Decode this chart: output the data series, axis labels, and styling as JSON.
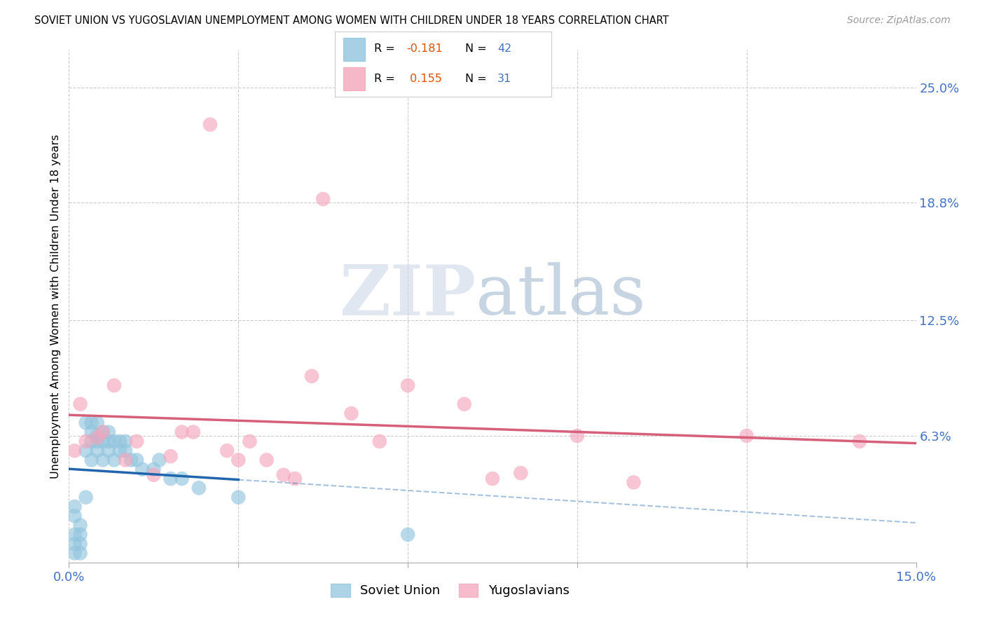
{
  "title": "SOVIET UNION VS YUGOSLAVIAN UNEMPLOYMENT AMONG WOMEN WITH CHILDREN UNDER 18 YEARS CORRELATION CHART",
  "source": "Source: ZipAtlas.com",
  "ylabel": "Unemployment Among Women with Children Under 18 years",
  "xlim": [
    0.0,
    0.15
  ],
  "ylim": [
    -0.005,
    0.27
  ],
  "xticks": [
    0.0,
    0.03,
    0.06,
    0.09,
    0.12,
    0.15
  ],
  "ytick_right_values": [
    0.063,
    0.125,
    0.188,
    0.25
  ],
  "ytick_right_labels": [
    "6.3%",
    "12.5%",
    "18.8%",
    "25.0%"
  ],
  "soviet_color": "#92c5de",
  "yugoslav_color": "#f4a6bc",
  "soviet_line_color": "#2166ac",
  "yugoslav_line_color": "#d6607a",
  "right_label_color": "#4472c4",
  "background_color": "#ffffff",
  "grid_color": "#cccccc",
  "soviet_x": [
    0.001,
    0.001,
    0.001,
    0.001,
    0.001,
    0.002,
    0.002,
    0.002,
    0.002,
    0.003,
    0.003,
    0.003,
    0.004,
    0.004,
    0.004,
    0.004,
    0.005,
    0.005,
    0.005,
    0.005,
    0.006,
    0.006,
    0.006,
    0.007,
    0.007,
    0.007,
    0.008,
    0.008,
    0.009,
    0.009,
    0.01,
    0.01,
    0.011,
    0.012,
    0.013,
    0.015,
    0.016,
    0.018,
    0.02,
    0.023,
    0.03,
    0.06
  ],
  "soviet_y": [
    0.0,
    0.005,
    0.01,
    0.02,
    0.025,
    0.0,
    0.005,
    0.01,
    0.015,
    0.03,
    0.055,
    0.07,
    0.05,
    0.06,
    0.065,
    0.07,
    0.055,
    0.06,
    0.063,
    0.07,
    0.05,
    0.06,
    0.065,
    0.055,
    0.06,
    0.065,
    0.05,
    0.06,
    0.055,
    0.06,
    0.055,
    0.06,
    0.05,
    0.05,
    0.045,
    0.045,
    0.05,
    0.04,
    0.04,
    0.035,
    0.03,
    0.01
  ],
  "yugoslav_x": [
    0.001,
    0.002,
    0.003,
    0.005,
    0.006,
    0.008,
    0.01,
    0.012,
    0.015,
    0.018,
    0.02,
    0.022,
    0.025,
    0.028,
    0.03,
    0.032,
    0.035,
    0.038,
    0.04,
    0.043,
    0.045,
    0.05,
    0.055,
    0.06,
    0.07,
    0.075,
    0.08,
    0.09,
    0.1,
    0.12,
    0.14
  ],
  "yugoslav_y": [
    0.055,
    0.08,
    0.06,
    0.062,
    0.065,
    0.09,
    0.05,
    0.06,
    0.042,
    0.052,
    0.065,
    0.065,
    0.23,
    0.055,
    0.05,
    0.06,
    0.05,
    0.042,
    0.04,
    0.095,
    0.19,
    0.075,
    0.06,
    0.09,
    0.08,
    0.04,
    0.043,
    0.063,
    0.038,
    0.063,
    0.06
  ]
}
